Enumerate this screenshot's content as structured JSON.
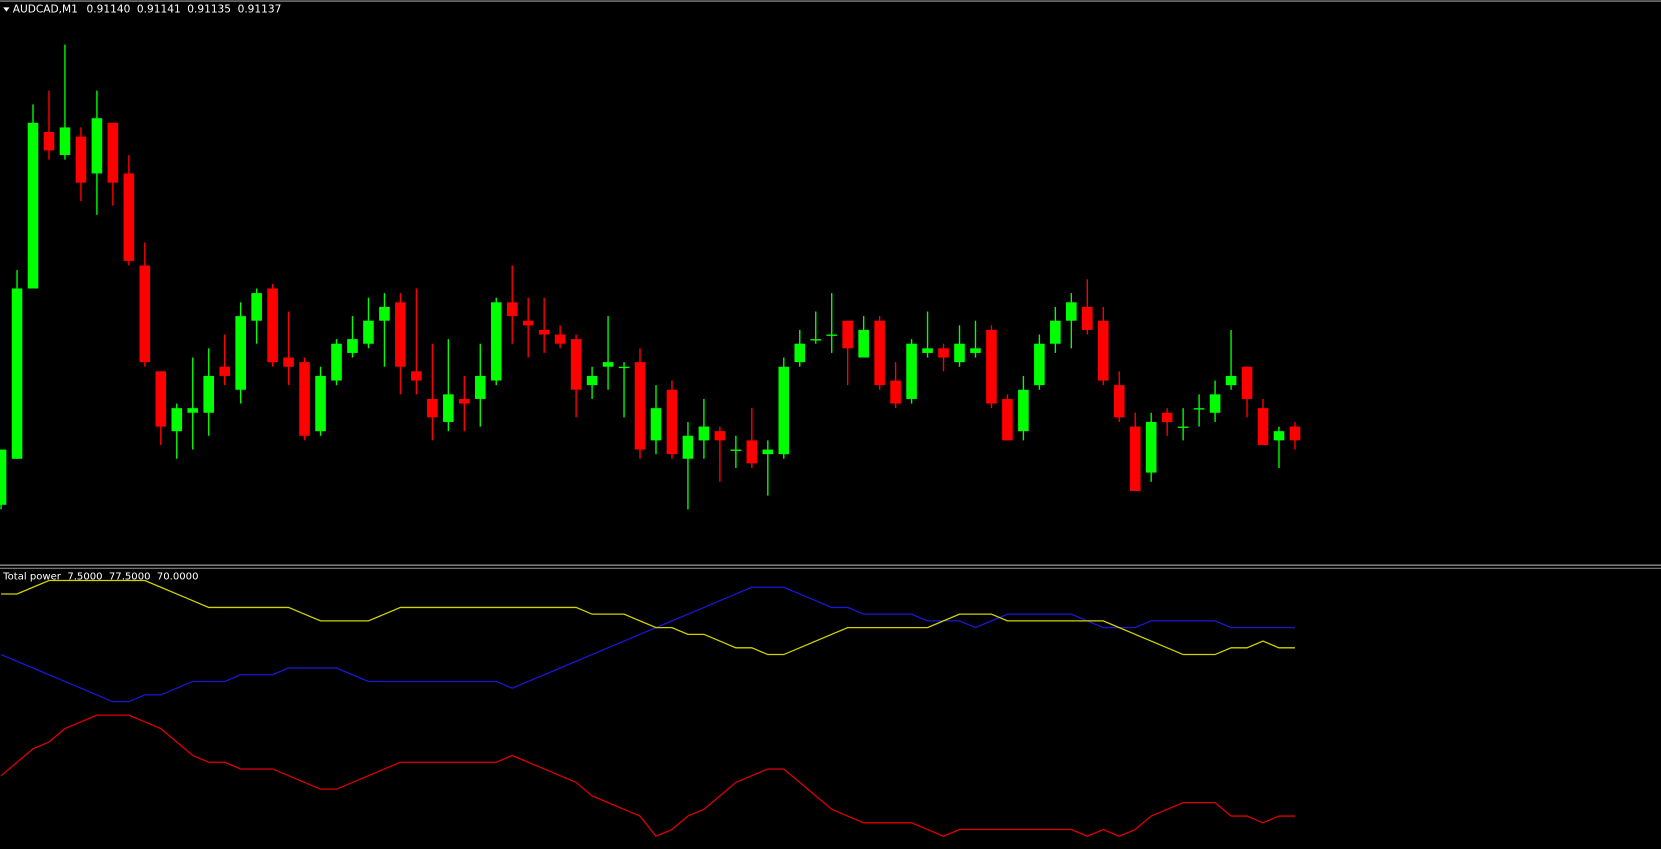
{
  "chart_data": [
    {
      "type": "candlestick",
      "title": "AUDCAD,M1",
      "quote": [
        "0.91140",
        "0.91141",
        "0.91135",
        "0.91137"
      ],
      "up_color": "#00ff00",
      "down_color": "#ff0000",
      "open": [
        0.91123,
        0.91133,
        0.9117,
        0.91204,
        0.91199,
        0.91203,
        0.91195,
        0.91206,
        0.91195,
        0.91175,
        0.91152,
        0.91139,
        0.91143,
        0.91143,
        0.91153,
        0.91148,
        0.91163,
        0.9117,
        0.91155,
        0.91154,
        0.91139,
        0.9115,
        0.91156,
        0.91158,
        0.91163,
        0.91167,
        0.91152,
        0.91146,
        0.91141,
        0.91146,
        0.91146,
        0.9115,
        0.91167,
        0.91163,
        0.91161,
        0.9116,
        0.91159,
        0.91149,
        0.91153,
        0.91153,
        0.91154,
        0.91137,
        0.91148,
        0.91133,
        0.91137,
        0.91139,
        0.91135,
        0.91137,
        0.91134,
        0.91134,
        0.91154,
        0.91159,
        0.9116,
        0.91163,
        0.91155,
        0.91163,
        0.9115,
        0.91146,
        0.91156,
        0.91157,
        0.91154,
        0.91156,
        0.91161,
        0.91146,
        0.91139,
        0.91149,
        0.91158,
        0.91163,
        0.91166,
        0.91163,
        0.91149,
        0.9114,
        0.9113,
        0.91143,
        0.9114,
        0.91144,
        0.91143,
        0.91149,
        0.91153,
        0.91144,
        0.91137,
        0.9114
      ],
      "high": [
        0.91135,
        0.91174,
        0.9121,
        0.91213,
        0.91223,
        0.91205,
        0.91213,
        0.91206,
        0.91199,
        0.9118,
        0.91152,
        0.91145,
        0.91155,
        0.91157,
        0.9116,
        0.91167,
        0.9117,
        0.91171,
        0.91165,
        0.91155,
        0.91153,
        0.91159,
        0.91164,
        0.91168,
        0.91169,
        0.91169,
        0.9117,
        0.91158,
        0.91159,
        0.91151,
        0.91158,
        0.91168,
        0.91175,
        0.91168,
        0.91168,
        0.91162,
        0.9116,
        0.91153,
        0.91164,
        0.91154,
        0.91157,
        0.91149,
        0.9115,
        0.91141,
        0.91146,
        0.9114,
        0.91138,
        0.91144,
        0.91137,
        0.91155,
        0.91161,
        0.91165,
        0.91169,
        0.91163,
        0.91164,
        0.91164,
        0.91154,
        0.91159,
        0.91165,
        0.91158,
        0.91162,
        0.91163,
        0.91162,
        0.91147,
        0.91151,
        0.9116,
        0.91166,
        0.91169,
        0.91172,
        0.91166,
        0.91152,
        0.91143,
        0.91143,
        0.91144,
        0.91144,
        0.91147,
        0.9115,
        0.91161,
        0.91153,
        0.91146,
        0.9114,
        0.91141
      ],
      "low": [
        0.91122,
        0.91133,
        0.9117,
        0.91198,
        0.91198,
        0.91189,
        0.91186,
        0.91188,
        0.91175,
        0.91153,
        0.91136,
        0.91133,
        0.91135,
        0.91138,
        0.91149,
        0.91145,
        0.91158,
        0.91153,
        0.91149,
        0.91137,
        0.91138,
        0.91149,
        0.91155,
        0.91157,
        0.91153,
        0.91147,
        0.91147,
        0.91137,
        0.91139,
        0.91139,
        0.9114,
        0.91149,
        0.91158,
        0.91155,
        0.91156,
        0.91157,
        0.91142,
        0.91146,
        0.91148,
        0.91142,
        0.91133,
        0.91134,
        0.91133,
        0.91122,
        0.91133,
        0.91128,
        0.91131,
        0.91131,
        0.91125,
        0.91133,
        0.91153,
        0.91158,
        0.91156,
        0.91149,
        0.91155,
        0.91148,
        0.91144,
        0.91145,
        0.91155,
        0.91152,
        0.91153,
        0.91155,
        0.91144,
        0.91137,
        0.91137,
        0.91148,
        0.91156,
        0.91157,
        0.9116,
        0.91149,
        0.91141,
        0.91126,
        0.91128,
        0.91138,
        0.91137,
        0.9114,
        0.91141,
        0.91148,
        0.91142,
        0.91136,
        0.91131,
        0.91135
      ],
      "close": [
        0.91135,
        0.9117,
        0.91206,
        0.912,
        0.91205,
        0.91193,
        0.91207,
        0.91193,
        0.91176,
        0.91154,
        0.9114,
        0.91144,
        0.91144,
        0.91151,
        0.91151,
        0.91164,
        0.91169,
        0.91154,
        0.91153,
        0.91138,
        0.91151,
        0.91158,
        0.91159,
        0.91163,
        0.91166,
        0.91153,
        0.9115,
        0.91142,
        0.91147,
        0.91145,
        0.91151,
        0.91167,
        0.91164,
        0.91162,
        0.9116,
        0.91158,
        0.91148,
        0.91151,
        0.91154,
        0.91153,
        0.91135,
        0.91144,
        0.91134,
        0.91138,
        0.9114,
        0.91137,
        0.91135,
        0.91132,
        0.91135,
        0.91153,
        0.91158,
        0.91159,
        0.9116,
        0.91157,
        0.91161,
        0.91149,
        0.91145,
        0.91158,
        0.91157,
        0.91155,
        0.91158,
        0.91157,
        0.91145,
        0.91137,
        0.91148,
        0.91158,
        0.91163,
        0.91167,
        0.91161,
        0.9115,
        0.91142,
        0.91126,
        0.91141,
        0.91141,
        0.9114,
        0.91144,
        0.91147,
        0.91151,
        0.91146,
        0.91136,
        0.91139,
        0.91137
      ]
    },
    {
      "type": "line",
      "title": "Total power",
      "title_values": [
        "7.5000",
        "77.5000",
        "70.0000"
      ],
      "series": [
        {
          "color": "#e00000",
          "values": [
            22.5,
            27.5,
            32.5,
            35,
            40,
            42.5,
            45,
            45,
            45,
            42.5,
            40,
            35,
            30,
            27.5,
            27.5,
            25,
            25,
            25,
            22.5,
            20,
            17.5,
            17.5,
            20,
            22.5,
            25,
            27.5,
            27.5,
            27.5,
            27.5,
            27.5,
            27.5,
            27.5,
            30,
            27.5,
            25,
            22.5,
            20,
            15,
            12.5,
            10,
            7.5,
            0,
            2.5,
            7.5,
            10,
            15,
            20,
            22.5,
            25,
            25,
            20,
            15,
            10,
            7.5,
            5,
            5,
            5,
            5,
            2.5,
            0,
            2.5,
            2.5,
            2.5,
            2.5,
            2.5,
            2.5,
            2.5,
            2.5,
            0,
            2.5,
            0,
            2.5,
            7.5,
            10,
            12.5,
            12.5,
            12.5,
            7.5,
            7.5,
            5,
            7.5,
            7.5
          ]
        },
        {
          "color": "#1818d8",
          "values": [
            67.5,
            65,
            62.5,
            60,
            57.5,
            55,
            52.5,
            50,
            50,
            52.5,
            52.5,
            55,
            57.5,
            57.5,
            57.5,
            60,
            60,
            60,
            62.5,
            62.5,
            62.5,
            62.5,
            60,
            57.5,
            57.5,
            57.5,
            57.5,
            57.5,
            57.5,
            57.5,
            57.5,
            57.5,
            55,
            57.5,
            60,
            62.5,
            65,
            67.5,
            70,
            72.5,
            75,
            77.5,
            80,
            82.5,
            85,
            87.5,
            90,
            92.5,
            92.5,
            92.5,
            90,
            87.5,
            85,
            85,
            82.5,
            82.5,
            82.5,
            82.5,
            80,
            80,
            80,
            77.5,
            80,
            82.5,
            82.5,
            82.5,
            82.5,
            82.5,
            80,
            77.5,
            77.5,
            77.5,
            80,
            80,
            80,
            80,
            80,
            77.5,
            77.5,
            77.5,
            77.5,
            77.5
          ]
        },
        {
          "color": "#d2d200",
          "values": [
            90,
            90,
            92.5,
            95,
            95,
            95,
            95,
            95,
            95,
            95,
            92.5,
            90,
            87.5,
            85,
            85,
            85,
            85,
            85,
            85,
            82.5,
            80,
            80,
            80,
            80,
            82.5,
            85,
            85,
            85,
            85,
            85,
            85,
            85,
            85,
            85,
            85,
            85,
            85,
            82.5,
            82.5,
            82.5,
            80,
            77.5,
            77.5,
            75,
            75,
            72.5,
            70,
            70,
            67.5,
            67.5,
            70,
            72.5,
            75,
            77.5,
            77.5,
            77.5,
            77.5,
            77.5,
            77.5,
            80,
            82.5,
            82.5,
            82.5,
            80,
            80,
            80,
            80,
            80,
            80,
            80,
            77.5,
            75,
            72.5,
            70,
            67.5,
            67.5,
            67.5,
            70,
            70,
            72.5,
            70,
            70
          ]
        }
      ]
    }
  ]
}
